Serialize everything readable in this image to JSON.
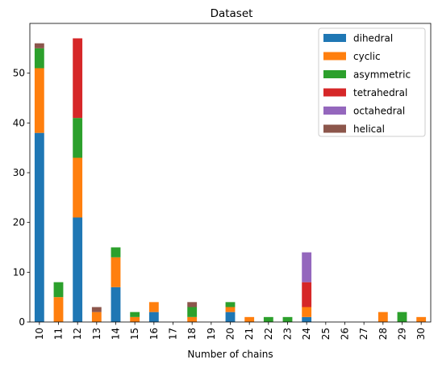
{
  "chart_data": {
    "type": "bar",
    "stacked": true,
    "title": "Dataset",
    "xlabel": "Number of chains",
    "ylabel": "",
    "ylim": [
      0,
      60
    ],
    "yticks": [
      0,
      10,
      20,
      30,
      40,
      50
    ],
    "legend_position": "top-right",
    "categories": [
      "10",
      "11",
      "12",
      "13",
      "14",
      "15",
      "16",
      "17",
      "18",
      "19",
      "20",
      "21",
      "22",
      "23",
      "24",
      "25",
      "26",
      "27",
      "28",
      "29",
      "30"
    ],
    "series": [
      {
        "name": "dihedral",
        "color": "#1f77b4",
        "values": [
          38,
          0,
          21,
          0,
          7,
          0,
          2,
          0,
          0,
          0,
          2,
          0,
          0,
          0,
          1,
          0,
          0,
          0,
          0,
          0,
          0
        ]
      },
      {
        "name": "cyclic",
        "color": "#ff7f0e",
        "values": [
          13,
          5,
          12,
          2,
          6,
          1,
          2,
          0,
          1,
          0,
          1,
          1,
          0,
          0,
          2,
          0,
          0,
          0,
          2,
          0,
          1
        ]
      },
      {
        "name": "asymmetric",
        "color": "#2ca02c",
        "values": [
          4,
          3,
          8,
          0,
          2,
          1,
          0,
          0,
          2,
          0,
          1,
          0,
          1,
          1,
          0,
          0,
          0,
          0,
          0,
          2,
          0
        ]
      },
      {
        "name": "tetrahedral",
        "color": "#d62728",
        "values": [
          0,
          0,
          16,
          0,
          0,
          0,
          0,
          0,
          0,
          0,
          0,
          0,
          0,
          0,
          5,
          0,
          0,
          0,
          0,
          0,
          0
        ]
      },
      {
        "name": "octahedral",
        "color": "#9467bd",
        "values": [
          0,
          0,
          0,
          0,
          0,
          0,
          0,
          0,
          0,
          0,
          0,
          0,
          0,
          0,
          6,
          0,
          0,
          0,
          0,
          0,
          0
        ]
      },
      {
        "name": "helical",
        "color": "#8c564b",
        "values": [
          1,
          0,
          0,
          1,
          0,
          0,
          0,
          0,
          1,
          0,
          0,
          0,
          0,
          0,
          0,
          0,
          0,
          0,
          0,
          0,
          0
        ]
      }
    ]
  }
}
